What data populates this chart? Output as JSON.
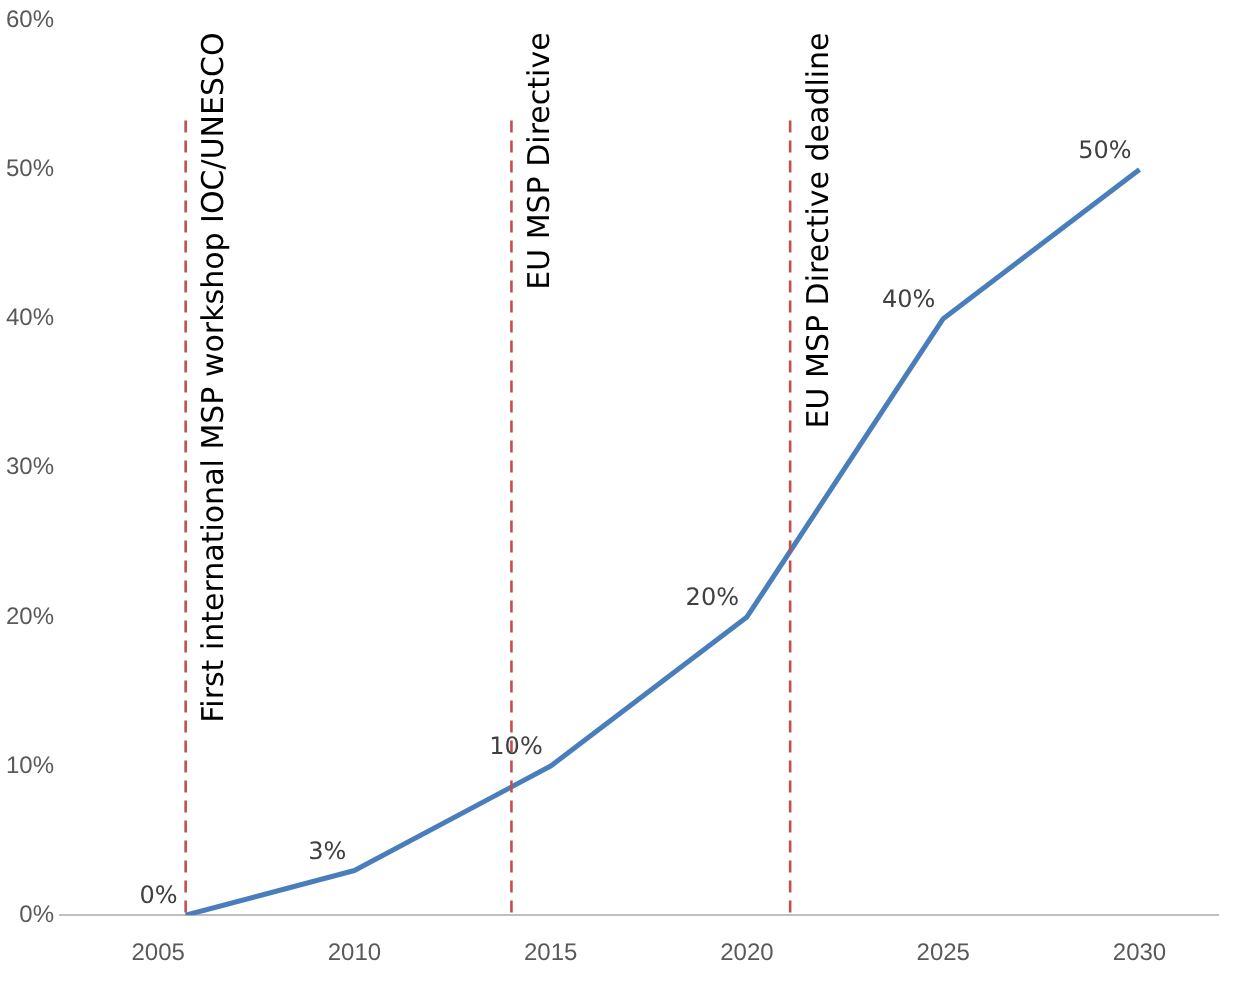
{
  "chart_data": {
    "type": "line",
    "x": [
      2005.7,
      2010,
      2015,
      2020,
      2025,
      2030
    ],
    "series": [
      {
        "color": "#4a7ebb",
        "values": [
          0,
          3,
          10,
          20,
          40,
          50
        ],
        "value_labels": [
          "0%",
          "3%",
          "10%",
          "20%",
          "40%",
          "50%"
        ]
      }
    ],
    "xlim": [
      2002.5,
      2032
    ],
    "xticks": [
      2005,
      2010,
      2015,
      2020,
      2025,
      2030
    ],
    "ylim": [
      0,
      60
    ],
    "yticks": [
      {
        "value": 0,
        "label": "0%"
      },
      {
        "value": 10,
        "label": "10%"
      },
      {
        "value": 20,
        "label": "20%"
      },
      {
        "value": 30,
        "label": "30%"
      },
      {
        "value": 40,
        "label": "40%"
      },
      {
        "value": 50,
        "label": "50%"
      },
      {
        "value": 60,
        "label": "60%"
      }
    ],
    "ref_lines": [
      {
        "axis": "x",
        "value": 2005.7,
        "label": "First international MSP workshop IOC/UNESCO",
        "color": "#c0504d",
        "line_style": "dashed"
      },
      {
        "axis": "x",
        "value": 2014,
        "label": "EU MSP Directive",
        "color": "#c0504d",
        "line_style": "dashed"
      },
      {
        "axis": "x",
        "value": 2021.1,
        "label": "EU MSP Directive deadline",
        "color": "#c0504d",
        "line_style": "dashed"
      }
    ],
    "grid": false,
    "legend": false,
    "marker": "none",
    "line_style": "solid"
  }
}
